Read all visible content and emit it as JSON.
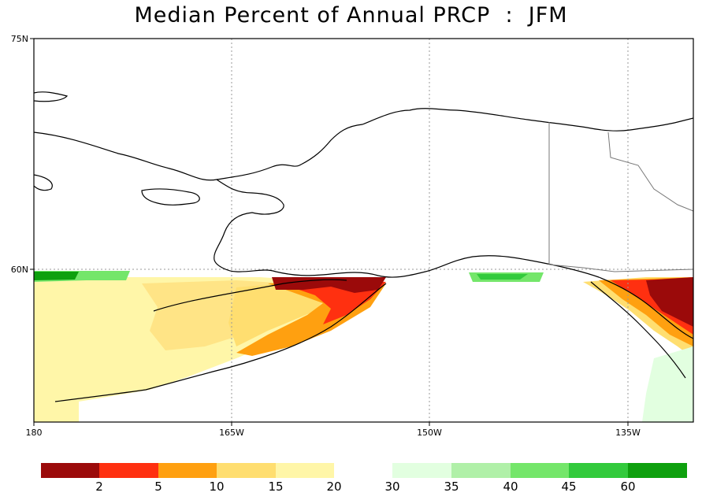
{
  "title": "Median Percent of Annual PRCP  :  JFM",
  "map": {
    "region": "Alaska",
    "lat_labels": [
      "75N",
      "60N"
    ],
    "lon_labels": [
      "180",
      "165W",
      "150W",
      "135W"
    ],
    "gridlines": "dotted",
    "field": "median percent of annual precipitation falling in January-March",
    "patterns": [
      {
        "area": "Bering Sea south of 60N",
        "level": "15-20"
      },
      {
        "area": "North Pacific / Gulf of Alaska coast",
        "level": "2-15"
      },
      {
        "area": "Southeast Alaska panhandle",
        "level": "<2-10"
      },
      {
        "area": "Aleutian / SW Bering strip at 60N",
        "level": "40-60"
      },
      {
        "area": "Northern Gulf of Alaska strip at 60N",
        "level": "40-60"
      },
      {
        "area": "Pacific SE corner",
        "level": "30-35"
      }
    ]
  },
  "colorbar": {
    "labels": [
      "2",
      "5",
      "10",
      "15",
      "20",
      "30",
      "35",
      "40",
      "45",
      "60"
    ],
    "colors_dry": [
      "#9b0a0a",
      "#ff3010",
      "#ffa010",
      "#ffde70",
      "#fff6a8"
    ],
    "colors_wet": [
      "#e2ffe0",
      "#b0f0a8",
      "#74e66a",
      "#32ca3c",
      "#0ea00e"
    ]
  }
}
